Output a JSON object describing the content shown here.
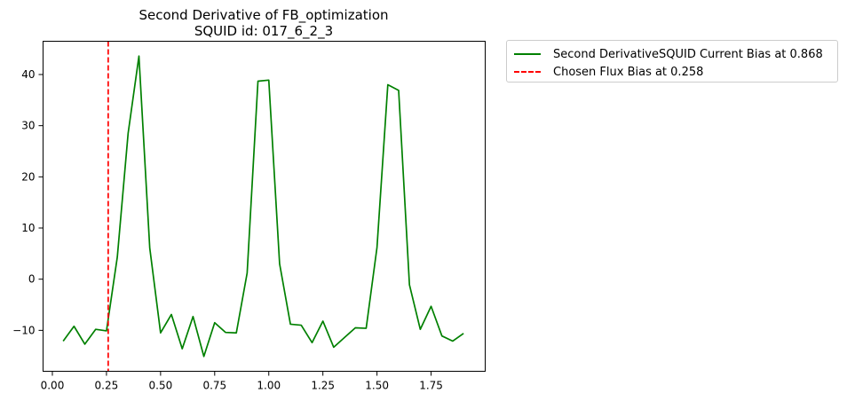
{
  "chart_data": {
    "type": "line",
    "title": "Second Derivative of FB_optimization",
    "subtitle": "SQUID id: 017_6_2_3",
    "xlabel": "",
    "ylabel": "",
    "xlim": [
      -0.043,
      2.0
    ],
    "ylim": [
      -18.0,
      46.5
    ],
    "xticks": [
      0.0,
      0.25,
      0.5,
      0.75,
      1.0,
      1.25,
      1.5,
      1.75
    ],
    "xtick_labels": [
      "0.00",
      "0.25",
      "0.50",
      "0.75",
      "1.00",
      "1.25",
      "1.50",
      "1.75"
    ],
    "yticks": [
      -10,
      0,
      10,
      20,
      30,
      40
    ],
    "ytick_labels": [
      "−10",
      "0",
      "10",
      "20",
      "30",
      "40"
    ],
    "grid": false,
    "legend_placement": "outside top-right",
    "series": [
      {
        "name": "Second DerivativeSQUID Current Bias at 0.868",
        "color": "#008000",
        "style": "solid",
        "x": [
          0.05,
          0.1,
          0.15,
          0.2,
          0.25,
          0.3,
          0.35,
          0.4,
          0.45,
          0.5,
          0.55,
          0.6,
          0.65,
          0.7,
          0.75,
          0.8,
          0.85,
          0.9,
          0.95,
          1.0,
          1.05,
          1.1,
          1.15,
          1.2,
          1.25,
          1.3,
          1.35,
          1.4,
          1.45,
          1.5,
          1.55,
          1.6,
          1.65,
          1.7,
          1.75,
          1.8,
          1.85,
          1.9
        ],
        "y": [
          -12.1,
          -9.2,
          -12.7,
          -9.8,
          -10.1,
          4.3,
          28.5,
          43.6,
          6.1,
          -10.5,
          -6.9,
          -13.6,
          -7.3,
          -15.1,
          -8.5,
          -10.4,
          -10.5,
          1.2,
          38.7,
          38.9,
          3.0,
          -8.8,
          -9.0,
          -12.4,
          -8.2,
          -13.3,
          -11.4,
          -9.5,
          -9.6,
          6.2,
          38.0,
          36.9,
          -1.1,
          -9.8,
          -5.3,
          -11.1,
          -12.1,
          -10.6
        ]
      },
      {
        "name": "Chosen Flux Bias at 0.258",
        "color": "#ff0000",
        "style": "dashed",
        "vline_x": 0.258
      }
    ]
  }
}
